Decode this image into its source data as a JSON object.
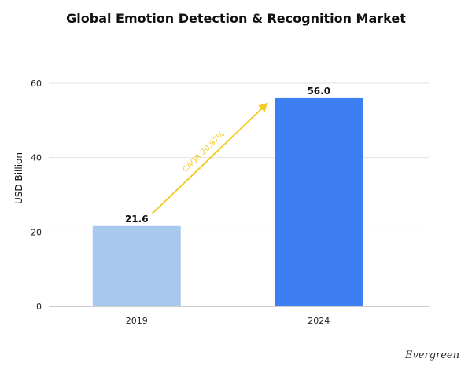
{
  "chart_data": {
    "type": "bar",
    "title": "Global Emotion Detection & Recognition Market",
    "xlabel": "",
    "ylabel": "USD Billion",
    "categories": [
      "2019",
      "2024"
    ],
    "values": [
      21.6,
      56.0
    ],
    "value_labels": [
      "21.6",
      "56.0"
    ],
    "ylim": [
      0,
      60
    ],
    "yticks": [
      0,
      20,
      40,
      60
    ],
    "grid": true,
    "bar_colors": [
      "#a9c8ee",
      "#3d7ef2"
    ],
    "annotation": {
      "text": "CAGR 20.97%",
      "color": "#f2cc2a",
      "from_category": "2019",
      "to_category": "2024"
    }
  },
  "brand": {
    "text": "Evergreen"
  }
}
